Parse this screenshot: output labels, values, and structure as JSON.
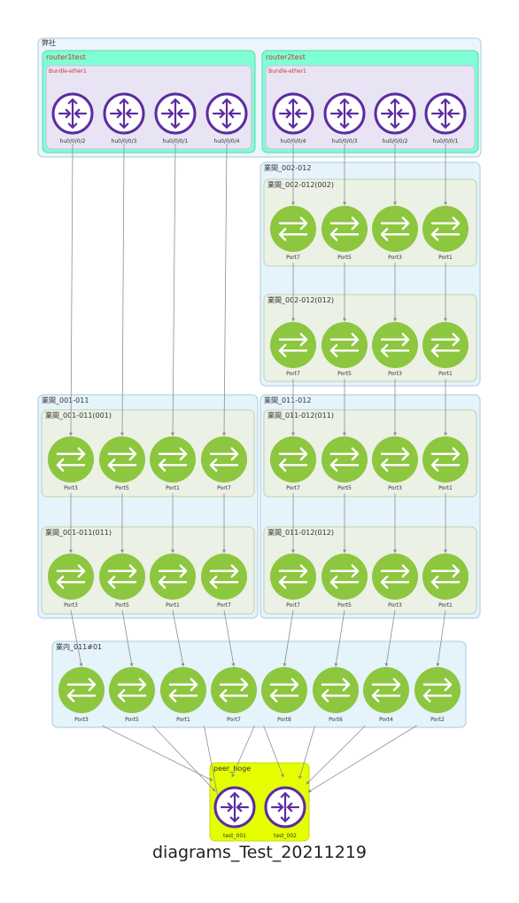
{
  "caption": "diagrams_Test_20211219",
  "clusters": {
    "company": "弊社",
    "router1": "router1test",
    "router1_bundle": "Bundle-ether1",
    "router2": "router2test",
    "router2_bundle": "Bundle-ether1",
    "c002_012": "業間_002-012",
    "c002_012_002": "業間_002-012(002)",
    "c002_012_012": "業間_002-012(012)",
    "c001_011": "業間_001-011",
    "c001_011_001": "業間_001-011(001)",
    "c001_011_011": "業間_001-011(011)",
    "c011_012": "業間_011-012",
    "c011_012_011": "業間_011-012(011)",
    "c011_012_012": "業間_011-012(012)",
    "c011_01": "業内_011#01",
    "peer": "peer_hoge"
  },
  "nodes": {
    "r1": [
      "hu0/0/0/2",
      "hu0/0/0/3",
      "hu0/0/0/1",
      "hu0/0/0/4"
    ],
    "r2": [
      "hu0/0/0/4",
      "hu0/0/0/3",
      "hu0/0/0/2",
      "hu0/0/0/1"
    ],
    "s002": [
      "Port7",
      "Port5",
      "Port3",
      "Port1"
    ],
    "s012": [
      "Port7",
      "Port5",
      "Port3",
      "Port1"
    ],
    "s001": [
      "Port3",
      "Port5",
      "Port1",
      "Port7"
    ],
    "s011a": [
      "Port3",
      "Port5",
      "Port1",
      "Port7"
    ],
    "s011b": [
      "Port7",
      "Port5",
      "Port3",
      "Port1"
    ],
    "s012b": [
      "Port7",
      "Port5",
      "Port3",
      "Port1"
    ],
    "s01": [
      "Port3",
      "Port5",
      "Port1",
      "Port7",
      "Port8",
      "Port6",
      "Port4",
      "Port2"
    ],
    "peer": [
      "test_001",
      "test_002"
    ]
  },
  "colors": {
    "switch": "#8dc63f",
    "router_stroke": "#5b2ca0",
    "router_fill": "#ffffff",
    "company_bg": "#ecf5fb",
    "router_cluster_bg": "#7fffd4",
    "bundle_bg": "#e8e4f3",
    "site_bg": "#e5f3fb",
    "sub_bg": "#ebf1e4",
    "peer_bg": "#e5ff00",
    "edge": "#8a8f96"
  },
  "icons": {
    "router": "router-icon",
    "switch": "switch-icon"
  }
}
